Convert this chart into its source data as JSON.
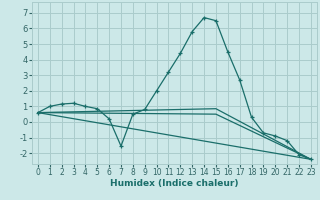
{
  "xlabel": "Humidex (Indice chaleur)",
  "background_color": "#cce8e8",
  "grid_color": "#aacccc",
  "line_color": "#1a6e6a",
  "xlim": [
    -0.5,
    23.5
  ],
  "ylim": [
    -2.7,
    7.7
  ],
  "yticks": [
    -2,
    -1,
    0,
    1,
    2,
    3,
    4,
    5,
    6,
    7
  ],
  "xticks": [
    0,
    1,
    2,
    3,
    4,
    5,
    6,
    7,
    8,
    9,
    10,
    11,
    12,
    13,
    14,
    15,
    16,
    17,
    18,
    19,
    20,
    21,
    22,
    23
  ],
  "series_main": {
    "x": [
      0,
      1,
      2,
      3,
      4,
      5,
      6,
      7,
      8,
      9,
      10,
      11,
      12,
      13,
      14,
      15,
      16,
      17,
      18,
      19,
      20,
      21,
      22,
      23
    ],
    "y": [
      0.6,
      1.0,
      1.15,
      1.2,
      1.0,
      0.85,
      0.2,
      -1.55,
      0.5,
      0.8,
      2.0,
      3.2,
      4.4,
      5.8,
      6.7,
      6.5,
      4.5,
      2.7,
      0.3,
      -0.7,
      -0.9,
      -1.2,
      -2.1,
      -2.4
    ]
  },
  "series_line1": {
    "x": [
      0,
      23
    ],
    "y": [
      0.6,
      -2.4
    ]
  },
  "series_line2": {
    "x": [
      0,
      15,
      23
    ],
    "y": [
      0.6,
      0.85,
      -2.4
    ]
  },
  "series_line3": {
    "x": [
      0,
      15,
      23
    ],
    "y": [
      0.6,
      0.5,
      -2.4
    ]
  }
}
